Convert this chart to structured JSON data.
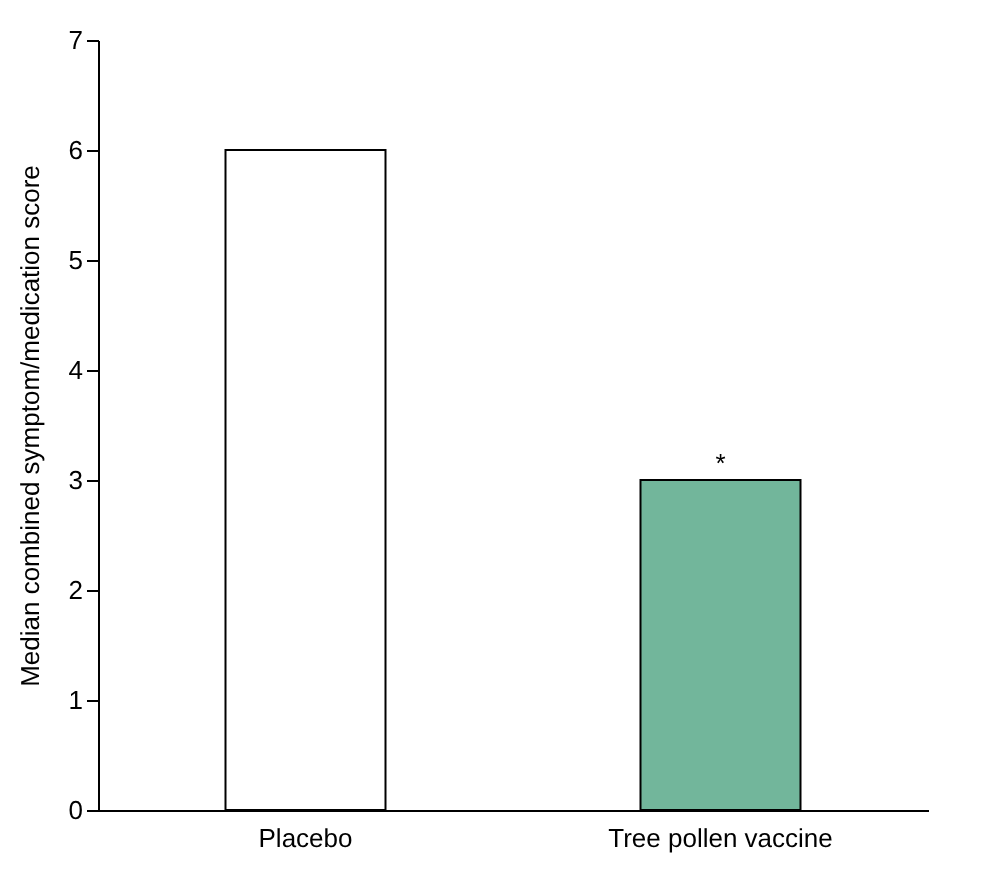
{
  "chart_data": {
    "type": "bar",
    "ylabel": "Median combined symptom/medication score",
    "categories": [
      "Placebo",
      "Tree pollen vaccine"
    ],
    "values": [
      6,
      3
    ],
    "colors": [
      "#ffffff",
      "#72b69b"
    ],
    "ylim": [
      0,
      7
    ],
    "yticks": [
      0,
      1,
      2,
      3,
      4,
      5,
      6,
      7
    ],
    "grid": false,
    "annotations": [
      {
        "text": "*",
        "x": "Tree pollen vaccine",
        "y": 3
      }
    ]
  }
}
